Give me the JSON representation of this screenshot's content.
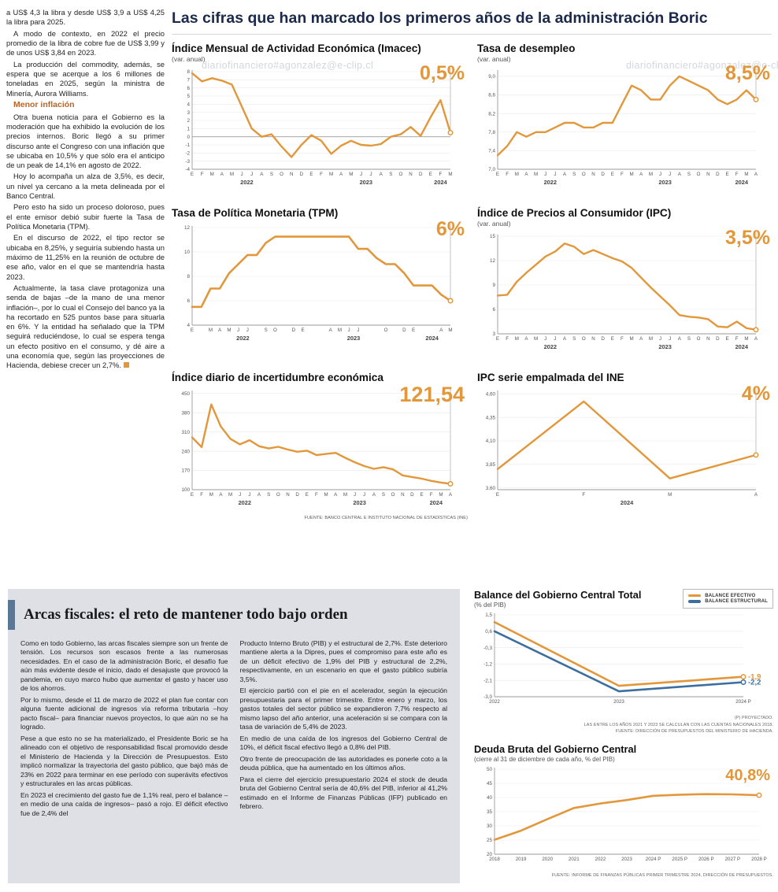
{
  "watermark": "diariofinanciero#agonzalez@e-clip.cl",
  "colors": {
    "accent_orange": "#E2973B",
    "line_blue": "#3C6E9F",
    "headline_navy": "#1B2A4A",
    "gray_box": "#DEE0E5",
    "title_bar_blue": "#5C7793"
  },
  "headline": "Las cifras que han marcado los primeros años de la administración Boric",
  "left_column": {
    "paragraphs": [
      "a US$ 4,3 la libra y desde US$ 3,9 a US$ 4,25 la libra para 2025.",
      "A modo de contexto, en 2022 el precio promedio de la libra de cobre fue de US$ 3,99 y de unos US$ 3,84 en 2023.",
      "La producción del commodity, además, se espera que se acerque a los 6 millones de toneladas en 2025, según la ministra de Minería, Aurora Williams."
    ],
    "subhead": "Menor inflación",
    "paragraphs2": [
      "Otra buena noticia para el Gobierno es la moderación que ha exhibido la evolución de los precios internos. Boric llegó a su primer discurso ante el Congreso con una inflación que se ubicaba en 10,5% y que sólo era el anticipo de un peak de 14,1% en agosto de 2022.",
      "Hoy lo acompaña un alza de 3,5%, es decir, un nivel ya cercano a la meta delineada por el Banco Central.",
      "Pero esto ha sido un proceso doloroso, pues el ente emisor debió subir fuerte la Tasa de Política Monetaria (TPM).",
      "En el discurso de 2022, el tipo rector se ubicaba en 8,25%, y seguiría subiendo hasta un máximo de 11,25% en la reunión de octubre de ese año, valor en el que se mantendría hasta 2023.",
      "Actualmente, la tasa clave protagoniza una senda de bajas –de la mano de una menor inflación–, por lo cual el Consejo del banco ya la ha recortado en 525 puntos base para situarla en 6%. Y la entidad ha señalado que la TPM seguirá reduciéndose, lo cual se espera tenga un efecto positivo en el consumo, y dé aire a una economía que, según las proyecciones de Hacienda, debiese crecer un 2,7%."
    ]
  },
  "bottom_article": {
    "title": "Arcas fiscales: el reto de mantener todo bajo orden",
    "col1": [
      "Como en todo Gobierno, las arcas fiscales siempre son un frente de tensión. Los recursos son escasos frente a las numerosas necesidades. En el caso de la administración Boric, el desafío fue aún más evidente desde el inicio, dado el desajuste que provocó la pandemia, en cuyo marco hubo que aumentar el gasto y hacer uso de los ahorros.",
      "Por lo mismo, desde el 11 de marzo de 2022 el plan fue contar con alguna fuente adicional de ingresos vía reforma tributaria –hoy pacto fiscal– para financiar nuevos proyectos, lo que aún no se ha logrado.",
      "Pese a que esto no se ha materializado, el Presidente Boric se ha alineado con el objetivo de responsabilidad fiscal promovido desde el Ministerio de Hacienda y la Dirección de Presupuestos. Esto implicó normalizar la trayectoria del gasto público, que bajó más de 23% en 2022 para terminar en ese período con superávits efectivos y estructurales en las arcas públicas.",
      "En 2023 el crecimiento del gasto fue de 1,1% real, pero el balance –en medio de una caída de ingresos– pasó a rojo. El déficit efectivo fue de 2,4% del"
    ],
    "col2": [
      "Producto Interno Bruto (PIB) y el estructural de 2,7%. Este deterioro mantiene alerta a la Dipres, pues el compromiso para este año es de un déficit efectivo de 1,9% del PIB y estructural de 2,2%, respectivamente, en un escenario en que el gasto público subiría 3,5%.",
      "El ejercicio partió con el pie en el acelerador, según la ejecución presupuestaria para el primer trimestre. Entre enero y marzo, los gastos totales del sector público se expandieron 7,7% respecto al mismo lapso del año anterior, una aceleración si se compara con la tasa de variación de 5,4% de 2023.",
      "En medio de una caída de los ingresos del Gobierno Central de 10%, el déficit fiscal efectivo llegó a 0,8% del PIB.",
      "Otro frente de preocupación de las autoridades es ponerle coto a la deuda pública, que ha aumentado en los últimos años.",
      "Para el cierre del ejercicio presupuestario 2024 el stock de deuda bruta del Gobierno Central sería de 40,6% del PIB, inferior al 41,2% estimado en el Informe de Finanzas Públicas (IFP) publicado en febrero."
    ]
  },
  "chart_data": [
    {
      "name": "imacec",
      "type": "line",
      "title": "Índice Mensual de Actividad Económica (Imacec)",
      "subtitle": "(var. anual)",
      "big_value": "0,5%",
      "ylim": [
        -4,
        8
      ],
      "yticks": [
        8,
        7,
        6,
        5,
        4,
        3,
        2,
        1,
        0,
        -1,
        -2,
        -3,
        -4
      ],
      "ytick_labels": [
        "8",
        "7",
        "6",
        "5",
        "4",
        "3",
        "2",
        "1",
        "0",
        "-1",
        "-2",
        "-3",
        "-4"
      ],
      "x_labels": [
        "E",
        "F",
        "M",
        "A",
        "M",
        "J",
        "J",
        "A",
        "S",
        "O",
        "N",
        "D",
        "E",
        "F",
        "M",
        "A",
        "M",
        "J",
        "J",
        "A",
        "S",
        "O",
        "N",
        "D",
        "E",
        "F",
        "M"
      ],
      "year_groups": [
        {
          "label": "2022",
          "start": 0,
          "end": 11
        },
        {
          "label": "2023",
          "start": 12,
          "end": 23
        },
        {
          "label": "2024",
          "start": 24,
          "end": 26
        }
      ],
      "end_dot": true,
      "end_line": true,
      "series": [
        {
          "name": "Imacec",
          "color": "#E2973B",
          "values": [
            7.8,
            6.8,
            7.2,
            6.9,
            6.4,
            3.7,
            1.0,
            0.0,
            0.3,
            -1.2,
            -2.5,
            -1.0,
            0.2,
            -0.5,
            -2.1,
            -1.1,
            -0.5,
            -1.0,
            -1.1,
            -0.9,
            0.0,
            0.3,
            1.2,
            0.1,
            2.4,
            4.5,
            0.5
          ]
        }
      ]
    },
    {
      "name": "tasa-desempleo",
      "type": "line",
      "title": "Tasa de desempleo",
      "subtitle": "(var. anual)",
      "big_value": "8,5%",
      "ylim": [
        7.0,
        9.1
      ],
      "yticks": [
        9.0,
        8.6,
        8.2,
        7.8,
        7.4,
        7.0
      ],
      "ytick_labels": [
        "9,0",
        "8,6",
        "8,2",
        "7,8",
        "7,4",
        "7,0"
      ],
      "x_labels": [
        "E",
        "F",
        "M",
        "A",
        "M",
        "J",
        "J",
        "A",
        "S",
        "O",
        "N",
        "D",
        "E",
        "F",
        "M",
        "A",
        "M",
        "J",
        "J",
        "A",
        "S",
        "O",
        "N",
        "D",
        "E",
        "F",
        "M",
        "A"
      ],
      "year_groups": [
        {
          "label": "2022",
          "start": 0,
          "end": 11
        },
        {
          "label": "2023",
          "start": 12,
          "end": 23
        },
        {
          "label": "2024",
          "start": 24,
          "end": 27
        }
      ],
      "end_dot": true,
      "end_line": true,
      "series": [
        {
          "name": "Tasa de desempleo",
          "color": "#E2973B",
          "values": [
            7.3,
            7.5,
            7.8,
            7.7,
            7.8,
            7.8,
            7.9,
            8.0,
            8.0,
            7.9,
            7.9,
            8.0,
            8.0,
            8.4,
            8.8,
            8.7,
            8.5,
            8.5,
            8.8,
            9.0,
            8.9,
            8.8,
            8.7,
            8.5,
            8.4,
            8.5,
            8.7,
            8.5
          ]
        }
      ]
    },
    {
      "name": "tpm",
      "type": "line",
      "title": "Tasa de Política Monetaria (TPM)",
      "subtitle": "",
      "big_value": "6%",
      "ylim": [
        4,
        12
      ],
      "yticks": [
        12,
        10,
        8,
        6,
        4
      ],
      "ytick_labels": [
        "12",
        "10",
        "8",
        "6",
        "4"
      ],
      "x_labels": [
        "E",
        "",
        "M",
        "A",
        "M",
        "J",
        "J",
        "",
        "S",
        "O",
        "",
        "D",
        "E",
        "",
        "",
        "A",
        "M",
        "J",
        "J",
        "",
        "",
        "O",
        "",
        "D",
        "E",
        "",
        "",
        "A",
        "M"
      ],
      "year_groups": [
        {
          "label": "2022",
          "start": 0,
          "end": 11
        },
        {
          "label": "2023",
          "start": 12,
          "end": 23
        },
        {
          "label": "2024",
          "start": 24,
          "end": 28
        }
      ],
      "end_dot": true,
      "end_line": true,
      "series": [
        {
          "name": "TPM",
          "color": "#E2973B",
          "width": 2.6,
          "values": [
            5.5,
            5.5,
            7.0,
            7.0,
            8.25,
            9.0,
            9.75,
            9.75,
            10.75,
            11.25,
            11.25,
            11.25,
            11.25,
            11.25,
            11.25,
            11.25,
            11.25,
            11.25,
            10.25,
            10.25,
            9.5,
            9.0,
            9.0,
            8.25,
            7.25,
            7.25,
            7.25,
            6.5,
            6.0
          ]
        }
      ]
    },
    {
      "name": "ipc",
      "type": "line",
      "title": "Índice de Precios al Consumidor (IPC)",
      "subtitle": "(var. anual)",
      "big_value": "3,5%",
      "ylim": [
        3,
        15
      ],
      "yticks": [
        15,
        12,
        9,
        6,
        3
      ],
      "ytick_labels": [
        "15",
        "12",
        "9",
        "6",
        "3"
      ],
      "x_labels": [
        "E",
        "F",
        "M",
        "A",
        "M",
        "J",
        "J",
        "A",
        "S",
        "O",
        "N",
        "D",
        "E",
        "F",
        "M",
        "A",
        "M",
        "J",
        "J",
        "A",
        "S",
        "O",
        "N",
        "D",
        "E",
        "F",
        "M",
        "A"
      ],
      "year_groups": [
        {
          "label": "2022",
          "start": 0,
          "end": 11
        },
        {
          "label": "2023",
          "start": 12,
          "end": 23
        },
        {
          "label": "2024",
          "start": 24,
          "end": 27
        }
      ],
      "end_dot": true,
      "end_line": true,
      "series": [
        {
          "name": "IPC",
          "color": "#E2973B",
          "values": [
            7.7,
            7.8,
            9.4,
            10.5,
            11.5,
            12.5,
            13.1,
            14.1,
            13.7,
            12.8,
            13.3,
            12.8,
            12.3,
            11.9,
            11.1,
            9.9,
            8.7,
            7.6,
            6.5,
            5.3,
            5.1,
            5.0,
            4.8,
            3.9,
            3.8,
            4.5,
            3.7,
            3.5
          ]
        }
      ]
    },
    {
      "name": "incertidumbre",
      "type": "line",
      "title": "Índice diario de incertidumbre económica",
      "subtitle": "",
      "big_value": "121,54",
      "source": "FUENTE: BANCO CENTRAL E INSTITUTO NACIONAL DE ESTADÍSTICAS (INE)",
      "ylim": [
        100,
        455
      ],
      "yticks": [
        450,
        380,
        310,
        240,
        170,
        100
      ],
      "ytick_labels": [
        "450",
        "380",
        "310",
        "240",
        "170",
        "100"
      ],
      "x_labels": [
        "E",
        "F",
        "M",
        "A",
        "M",
        "J",
        "J",
        "A",
        "S",
        "O",
        "N",
        "D",
        "E",
        "F",
        "M",
        "A",
        "M",
        "J",
        "J",
        "A",
        "S",
        "O",
        "N",
        "D",
        "E",
        "F",
        "M",
        "A"
      ],
      "year_groups": [
        {
          "label": "2022",
          "start": 0,
          "end": 11
        },
        {
          "label": "2023",
          "start": 12,
          "end": 23
        },
        {
          "label": "2024",
          "start": 24,
          "end": 27
        }
      ],
      "end_dot": true,
      "end_line": true,
      "series": [
        {
          "name": "Incertidumbre económica",
          "color": "#E2973B",
          "values": [
            290,
            255,
            410,
            330,
            285,
            265,
            280,
            258,
            250,
            256,
            246,
            238,
            242,
            226,
            230,
            234,
            216,
            200,
            186,
            176,
            182,
            174,
            152,
            146,
            140,
            132,
            126,
            121.54
          ]
        }
      ]
    },
    {
      "name": "ipc-empalmada",
      "type": "line",
      "title": "IPC serie empalmada del INE",
      "subtitle": "",
      "big_value": "4%",
      "ylim": [
        3.58,
        4.62
      ],
      "yticks": [
        4.6,
        4.35,
        4.1,
        3.85,
        3.6
      ],
      "ytick_labels": [
        "4,60",
        "4,35",
        "4,10",
        "3,85",
        "3,60"
      ],
      "x_labels": [
        "E",
        "F",
        "M",
        "A"
      ],
      "year_groups": [
        {
          "label": "2024",
          "start": 0,
          "end": 3
        }
      ],
      "end_dot": true,
      "end_line": true,
      "series": [
        {
          "name": "IPC serie empalmada",
          "color": "#E2973B",
          "values": [
            3.8,
            4.52,
            3.7,
            3.95
          ]
        }
      ]
    },
    {
      "name": "balance-gobierno-central",
      "type": "line",
      "title": "Balance del Gobierno Central Total",
      "subtitle": "(% del PIB)",
      "ylim": [
        -3.0,
        1.5
      ],
      "yticks": [
        1.5,
        0.6,
        -0.3,
        -1.2,
        -2.1,
        -3.0
      ],
      "ytick_labels": [
        "1,5",
        "0,6",
        "-0,3",
        "-1,2",
        "-2,1",
        "-3,0"
      ],
      "x_labels": [
        "2022",
        "2023",
        "2024 P"
      ],
      "end_dot": true,
      "end_line": false,
      "end_labels": [
        "-1,9",
        "-2,2"
      ],
      "notes": [
        "(P) PROYECTADO.",
        "LAS ENTRE LOS AÑOS 2021 Y 2023 SE CALCULAN CON LAS CUENTAS NACIONALES 2018.",
        "FUENTE: DIRECCIÓN DE PRESUPUESTOS DEL MINISTERIO DE HACIENDA."
      ],
      "series": [
        {
          "name": "BALANCE EFECTIVO",
          "color": "#E2973B",
          "width": 2.6,
          "values": [
            1.1,
            -2.4,
            -1.9
          ]
        },
        {
          "name": "BALANCE ESTRUCTURAL",
          "color": "#3C6E9F",
          "width": 2.6,
          "values": [
            0.6,
            -2.7,
            -2.2
          ]
        }
      ]
    },
    {
      "name": "deuda-bruta",
      "type": "line",
      "title": "Deuda Bruta del Gobierno Central",
      "subtitle": "(cierre al 31 de diciembre de cada año, % del PIB)",
      "big_value": "40,8%",
      "source": "FUENTE: INFORME DE FINANZAS PÚBLICAS PRIMER TRIMESTRE 2024, DIRECCIÓN DE PRESUPUESTOS.",
      "ylim": [
        20,
        50
      ],
      "yticks": [
        50,
        45,
        40,
        35,
        30,
        25,
        20
      ],
      "ytick_labels": [
        "50",
        "45",
        "40",
        "35",
        "30",
        "25",
        "20"
      ],
      "x_labels": [
        "2018",
        "2019",
        "2020",
        "2021",
        "2022",
        "2023",
        "2024 P",
        "2025 P",
        "2026 P",
        "2027 P",
        "2028 P"
      ],
      "end_dot": true,
      "end_line": false,
      "series": [
        {
          "name": "Deuda bruta",
          "color": "#E2973B",
          "width": 2.6,
          "values": [
            25.1,
            28.3,
            32.4,
            36.3,
            37.9,
            39.1,
            40.6,
            41.0,
            41.2,
            41.1,
            40.8
          ]
        }
      ]
    }
  ]
}
